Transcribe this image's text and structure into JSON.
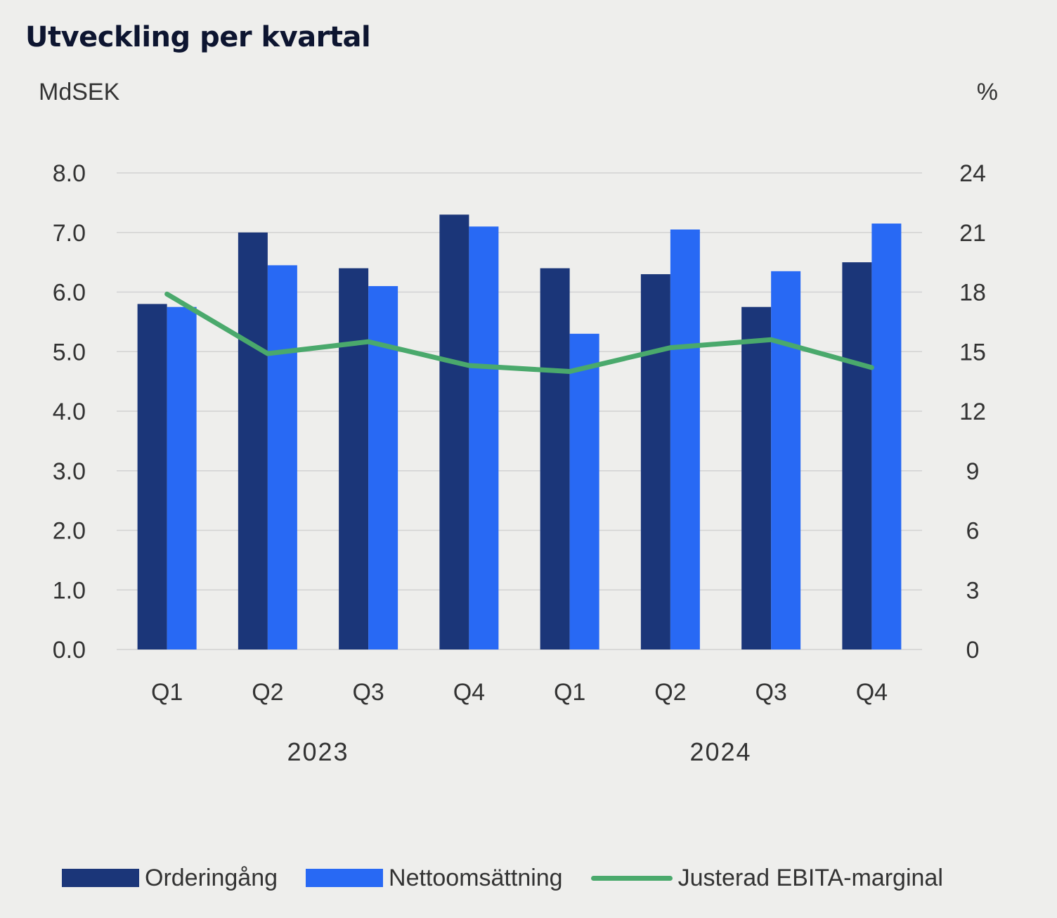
{
  "header": {
    "title": "Utveckling per kvartal",
    "left_unit": "MdSEK",
    "right_unit": "%"
  },
  "colors": {
    "orders": "#1b3679",
    "sales": "#2869f4",
    "margin": "#4aa96c",
    "grid": "#d2d2d2",
    "background": "#eeeeec"
  },
  "chart_data": {
    "type": "bar",
    "title": "Utveckling per kvartal",
    "ylabel": "MdSEK",
    "y2label": "%",
    "ylim": [
      0,
      8
    ],
    "y2lim": [
      0,
      24
    ],
    "yticks": [
      "0.0",
      "1.0",
      "2.0",
      "3.0",
      "4.0",
      "5.0",
      "6.0",
      "7.0",
      "8.0"
    ],
    "y2ticks": [
      "0",
      "3",
      "6",
      "9",
      "12",
      "15",
      "18",
      "21",
      "24"
    ],
    "categories": [
      "Q1",
      "Q2",
      "Q3",
      "Q4",
      "Q1",
      "Q2",
      "Q3",
      "Q4"
    ],
    "groups": [
      {
        "label": "2023",
        "start": 0,
        "end": 3
      },
      {
        "label": "2024",
        "start": 4,
        "end": 7
      }
    ],
    "grid": true,
    "legend_position": "bottom",
    "series": [
      {
        "name": "Orderingång",
        "type": "bar",
        "axis": "left",
        "values": [
          5.8,
          7.0,
          6.4,
          7.3,
          6.4,
          6.3,
          5.75,
          6.5
        ]
      },
      {
        "name": "Nettoomsättning",
        "type": "bar",
        "axis": "left",
        "values": [
          5.75,
          6.45,
          6.1,
          7.1,
          5.3,
          7.05,
          6.35,
          7.15
        ]
      },
      {
        "name": "Justerad EBITA-marginal",
        "type": "line",
        "axis": "right",
        "values": [
          17.9,
          14.9,
          15.5,
          14.3,
          14.0,
          15.2,
          15.6,
          14.2
        ]
      }
    ]
  }
}
